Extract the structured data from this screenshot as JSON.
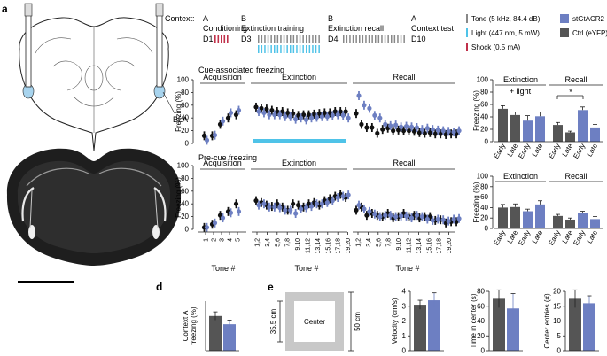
{
  "panels": {
    "a": "a",
    "b": "b",
    "c": "c",
    "d": "d",
    "e": "e"
  },
  "brain": {
    "bla_label": "BLA"
  },
  "protocol": {
    "context_label": "Context:",
    "stages": [
      {
        "ctx": "A",
        "name": "Conditioning",
        "day": "D1"
      },
      {
        "ctx": "B",
        "name": "Extinction training",
        "day": "D3"
      },
      {
        "ctx": "B",
        "name": "Extinction recall",
        "day": "D4"
      },
      {
        "ctx": "A",
        "name": "Context test",
        "day": "D10"
      }
    ]
  },
  "legend": {
    "tone": "Tone (5 kHz, 84.4 dB)",
    "light": "Light (447 nm, 5 mW)",
    "shock": "Shock (0.5 mA)",
    "groups": [
      "stGtACR2",
      "Ctrl (eYFP)"
    ]
  },
  "colors": {
    "stgtacr2": "#6d7fc2",
    "ctrl": "#555555",
    "ctrl_dot": "#111111",
    "light": "#4fc3e8",
    "shock": "#c0304a",
    "tone": "#888888"
  },
  "chart_data": [
    {
      "id": "cue-timecourse",
      "type": "scatter",
      "title": "Cue-associated freezing",
      "ylabel": "Freezing (%)",
      "ylim": [
        0,
        100
      ],
      "yticks": [
        0,
        20,
        40,
        60,
        80,
        100
      ],
      "phases": [
        "Acquisition",
        "Extinction",
        "Recall"
      ],
      "ctrl": {
        "acquisition": [
          12,
          12,
          30,
          40,
          45
        ],
        "extinction": [
          57,
          55,
          54,
          52,
          50,
          50,
          48,
          47,
          44,
          45,
          45,
          46,
          47,
          48,
          48,
          50,
          50,
          50
        ],
        "recall": [
          47,
          30,
          25,
          25,
          16,
          22,
          24,
          20,
          21,
          20,
          20,
          19,
          17,
          16,
          17,
          15,
          15,
          14,
          15,
          15
        ]
      },
      "gtacr": {
        "acquisition": [
          5,
          13,
          35,
          48,
          52
        ],
        "extinction": [
          50,
          48,
          45,
          45,
          45,
          42,
          42,
          38,
          40,
          37,
          40,
          41,
          42,
          42,
          44,
          45,
          44,
          40
        ],
        "recall": [
          75,
          60,
          55,
          44,
          40,
          30,
          28,
          29,
          26,
          27,
          26,
          25,
          22,
          24,
          22,
          21,
          20,
          19,
          18,
          20
        ]
      }
    },
    {
      "id": "precue-timecourse",
      "type": "scatter",
      "title": "Pre-cue freezing",
      "ylabel": "Freezing (%)",
      "ylim": [
        0,
        100
      ],
      "yticks": [
        0,
        20,
        40,
        60,
        80,
        100
      ],
      "phases": [
        "Acquisition",
        "Extinction",
        "Recall"
      ],
      "ctrl": {
        "acquisition": [
          3,
          8,
          22,
          28,
          40
        ],
        "extinction": [
          45,
          42,
          38,
          36,
          40,
          35,
          30,
          40,
          38,
          35,
          40,
          42,
          38,
          45,
          48,
          52,
          55,
          50
        ],
        "recall": [
          30,
          35,
          22,
          25,
          22,
          20,
          25,
          18,
          20,
          25,
          20,
          22,
          18,
          20,
          20,
          14,
          15,
          10,
          12,
          12
        ]
      },
      "gtacr": {
        "acquisition": [
          3,
          10,
          18,
          26,
          28
        ],
        "extinction": [
          38,
          40,
          35,
          35,
          34,
          30,
          30,
          25,
          32,
          34,
          36,
          40,
          40,
          42,
          45,
          50,
          52,
          54
        ],
        "recall": [
          38,
          32,
          28,
          24,
          20,
          22,
          22,
          20,
          21,
          21,
          18,
          22,
          20,
          16,
          14,
          16,
          15,
          13,
          16,
          17
        ]
      },
      "xlabel": "Tone #",
      "acq_ticks": [
        "1",
        "2",
        "3",
        "4",
        "5"
      ],
      "pair_ticks": [
        "1,2",
        "3,4",
        "5,6",
        "7,8",
        "9,10",
        "11,12",
        "13,14",
        "15,16",
        "17,18",
        "19,20"
      ]
    },
    {
      "id": "cue-summary",
      "type": "bar",
      "ylabel": "Freezing (%)",
      "ylim": [
        0,
        100
      ],
      "yticks": [
        0,
        20,
        40,
        60,
        80,
        100
      ],
      "groups": [
        "Extinction",
        "Recall"
      ],
      "light_note": "+ light",
      "categories": [
        "Early",
        "Late",
        "Early",
        "Late",
        "Early",
        "Late",
        "Early",
        "Late"
      ],
      "values": [
        53,
        43,
        34,
        41,
        27,
        15,
        51,
        23
      ],
      "errors": [
        5,
        5,
        8,
        7,
        4,
        2,
        5,
        5
      ],
      "series_colors": [
        "ctrl",
        "ctrl",
        "gtacr",
        "gtacr",
        "ctrl",
        "ctrl",
        "gtacr",
        "gtacr"
      ],
      "significance": "*"
    },
    {
      "id": "precue-summary",
      "type": "bar",
      "ylabel": "Freezing (%)",
      "ylim": [
        0,
        100
      ],
      "yticks": [
        0,
        20,
        40,
        60,
        80,
        100
      ],
      "groups": [
        "Extinction",
        "Recall"
      ],
      "categories": [
        "Early",
        "Late",
        "Early",
        "Late",
        "Early",
        "Late",
        "Early",
        "Late"
      ],
      "values": [
        40,
        41,
        33,
        46,
        24,
        17,
        29,
        18
      ],
      "errors": [
        6,
        6,
        4,
        7,
        3,
        3,
        4,
        5
      ],
      "series_colors": [
        "ctrl",
        "ctrl",
        "gtacr",
        "gtacr",
        "ctrl",
        "ctrl",
        "gtacr",
        "gtacr"
      ]
    },
    {
      "id": "context-a",
      "type": "bar",
      "ylabel": "Context A\nfreezing (%)",
      "ylim": [
        0,
        60
      ],
      "categories": [
        "Ctrl (eYFP)",
        "stGtACR2"
      ],
      "values": [
        42,
        32
      ],
      "errors": [
        5,
        5
      ]
    },
    {
      "id": "velocity",
      "type": "bar",
      "ylabel": "Velocity (cm/s)",
      "ylim": [
        0,
        4
      ],
      "yticks": [
        0,
        1,
        2,
        3,
        4
      ],
      "categories": [
        "Ctrl (eYFP)",
        "stGtACR2"
      ],
      "values": [
        3.1,
        3.4
      ],
      "errors": [
        0.3,
        0.5
      ]
    },
    {
      "id": "time-center",
      "type": "bar",
      "ylabel": "Time in center (s)",
      "ylim": [
        0,
        80
      ],
      "yticks": [
        0,
        20,
        40,
        60,
        80
      ],
      "categories": [
        "Ctrl (eYFP)",
        "stGtACR2"
      ],
      "values": [
        70,
        57
      ],
      "errors": [
        12,
        20
      ]
    },
    {
      "id": "center-entries",
      "type": "bar",
      "ylabel": "Center entries (#)",
      "ylim": [
        0,
        20
      ],
      "yticks": [
        0,
        5,
        10,
        15,
        20
      ],
      "categories": [
        "Ctrl (eYFP)",
        "stGtACR2"
      ],
      "values": [
        17.5,
        16
      ],
      "errors": [
        3,
        2.5
      ]
    }
  ],
  "open_field": {
    "center_label": "Center",
    "inner_size": "35.5 cm",
    "outer_size": "50 cm"
  }
}
